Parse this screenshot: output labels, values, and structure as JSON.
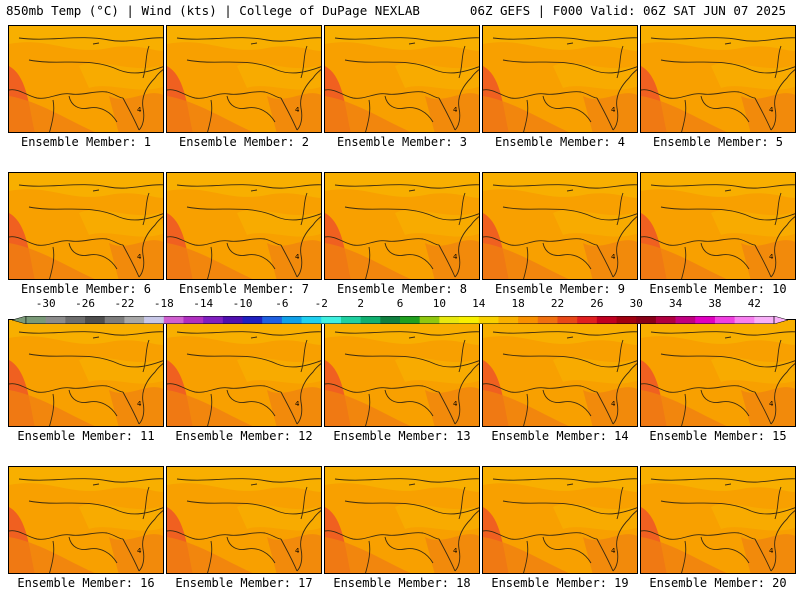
{
  "header": {
    "left": "850mb Temp (°C) | Wind (kts) | College of DuPage NEXLAB",
    "right": "06Z GEFS | F000 Valid: 06Z SAT JUN 07 2025"
  },
  "panels": [
    {
      "label": "Ensemble Member: 1"
    },
    {
      "label": "Ensemble Member: 2"
    },
    {
      "label": "Ensemble Member: 3"
    },
    {
      "label": "Ensemble Member: 4"
    },
    {
      "label": "Ensemble Member: 5"
    },
    {
      "label": "Ensemble Member: 6"
    },
    {
      "label": "Ensemble Member: 7"
    },
    {
      "label": "Ensemble Member: 8"
    },
    {
      "label": "Ensemble Member: 9"
    },
    {
      "label": "Ensemble Member: 10"
    },
    {
      "label": "Ensemble Member: 11"
    },
    {
      "label": "Ensemble Member: 12"
    },
    {
      "label": "Ensemble Member: 13"
    },
    {
      "label": "Ensemble Member: 14"
    },
    {
      "label": "Ensemble Member: 15"
    },
    {
      "label": "Ensemble Member: 16"
    },
    {
      "label": "Ensemble Member: 17"
    },
    {
      "label": "Ensemble Member: 18"
    },
    {
      "label": "Ensemble Member: 19"
    },
    {
      "label": "Ensemble Member: 20"
    }
  ],
  "colorbar": {
    "labels": [
      "-30",
      "-26",
      "-22",
      "-18",
      "-14",
      "-10",
      "-6",
      "-2",
      "2",
      "6",
      "10",
      "14",
      "18",
      "22",
      "26",
      "30",
      "34",
      "38",
      "42"
    ],
    "colors": [
      "#7a9a78",
      "#8c8c8c",
      "#6e6e6e",
      "#4f4f4f",
      "#7d7d7d",
      "#a8a8a8",
      "#c8c8e8",
      "#d060d0",
      "#b030c0",
      "#8020c0",
      "#5010b0",
      "#2020c0",
      "#2060e0",
      "#10a0e8",
      "#20d0f0",
      "#40f0e0",
      "#20d0a0",
      "#10b070",
      "#108040",
      "#20a020",
      "#90c810",
      "#e8e810",
      "#f8f000",
      "#f8d000",
      "#f8b000",
      "#f89000",
      "#f07010",
      "#e84818",
      "#e02020",
      "#c00020",
      "#a00010",
      "#880018",
      "#b00040",
      "#c00080",
      "#e000c0",
      "#f040e0",
      "#f880f0",
      "#f8b0f8"
    ]
  },
  "map_colors": {
    "base": "#f8a000",
    "warm": "#f08010",
    "hot": "#f06020",
    "cool": "#f8b400",
    "coast": "#3a2a10"
  }
}
